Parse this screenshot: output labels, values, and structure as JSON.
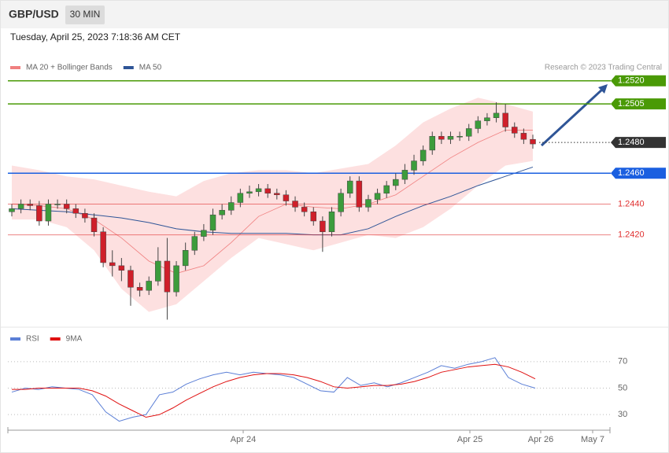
{
  "chart_data": {
    "type": "candlestick",
    "symbol": "GBP/USD",
    "timeframe": "30 MIN",
    "timestamp": "Tuesday, April 25, 2023 7:18:36 AM CET",
    "credit": "Research © 2023 Trading Central",
    "up_color": "#3c9c3c",
    "down_color": "#cf1f2a",
    "open": [
      1.2435,
      1.2437,
      1.244,
      1.2439,
      1.2429,
      1.244,
      1.244,
      1.2437,
      1.2434,
      1.2431,
      1.2422,
      1.2402,
      1.24,
      1.2397,
      1.2386,
      1.2384,
      1.239,
      1.2403,
      1.2383,
      1.24,
      1.241,
      1.2419,
      1.2423,
      1.2433,
      1.2436,
      1.2441,
      1.2447,
      1.2448,
      1.245,
      1.2447,
      1.2446,
      1.2442,
      1.2438,
      1.2435,
      1.2429,
      1.2422,
      1.2435,
      1.2447,
      1.2455,
      1.2438,
      1.2443,
      1.2447,
      1.2452,
      1.2456,
      1.2462,
      1.2468,
      1.2475,
      1.2484,
      1.2482,
      1.2484,
      1.2484,
      1.2489,
      1.2494,
      1.2496,
      1.2499,
      1.249,
      1.2486,
      1.2482
    ],
    "high": [
      1.244,
      1.2443,
      1.2443,
      1.2442,
      1.2443,
      1.2443,
      1.2443,
      1.244,
      1.2437,
      1.2434,
      1.2425,
      1.241,
      1.2405,
      1.24,
      1.2389,
      1.2393,
      1.2412,
      1.2418,
      1.2403,
      1.2415,
      1.2422,
      1.2427,
      1.2437,
      1.244,
      1.2445,
      1.245,
      1.2452,
      1.2453,
      1.2453,
      1.245,
      1.2449,
      1.2445,
      1.2441,
      1.2438,
      1.2432,
      1.2438,
      1.245,
      1.2458,
      1.2458,
      1.2446,
      1.245,
      1.2455,
      1.246,
      1.2466,
      1.2472,
      1.2478,
      1.2487,
      1.2487,
      1.2487,
      1.2487,
      1.2492,
      1.2497,
      1.2499,
      1.2506,
      1.2505,
      1.2493,
      1.2489,
      1.2485
    ],
    "low": [
      1.2432,
      1.2434,
      1.2436,
      1.2426,
      1.2426,
      1.2437,
      1.2434,
      1.2431,
      1.2428,
      1.2419,
      1.2399,
      1.2393,
      1.239,
      1.2374,
      1.238,
      1.2381,
      1.2387,
      1.2365,
      1.238,
      1.2397,
      1.2407,
      1.2416,
      1.242,
      1.243,
      1.2433,
      1.2438,
      1.2444,
      1.2445,
      1.2444,
      1.2443,
      1.2439,
      1.2435,
      1.2432,
      1.2426,
      1.2409,
      1.2419,
      1.2432,
      1.2444,
      1.2435,
      1.2435,
      1.244,
      1.2444,
      1.2449,
      1.2453,
      1.2459,
      1.2465,
      1.2472,
      1.2479,
      1.2479,
      1.2481,
      1.2481,
      1.2486,
      1.2491,
      1.2493,
      1.2487,
      1.2483,
      1.2479,
      1.2476
    ],
    "close": [
      1.2437,
      1.244,
      1.2439,
      1.2429,
      1.244,
      1.244,
      1.2437,
      1.2434,
      1.2431,
      1.2422,
      1.2402,
      1.24,
      1.2397,
      1.2386,
      1.2384,
      1.239,
      1.2403,
      1.2383,
      1.24,
      1.241,
      1.2419,
      1.2423,
      1.2433,
      1.2436,
      1.2441,
      1.2447,
      1.2448,
      1.245,
      1.2447,
      1.2446,
      1.2442,
      1.2438,
      1.2435,
      1.2429,
      1.2422,
      1.2435,
      1.2447,
      1.2455,
      1.2438,
      1.2443,
      1.2447,
      1.2452,
      1.2456,
      1.2462,
      1.2468,
      1.2475,
      1.2484,
      1.2482,
      1.2484,
      1.2484,
      1.2489,
      1.2494,
      1.2496,
      1.2499,
      1.249,
      1.2486,
      1.2482,
      1.2479
    ],
    "overlay_legend": [
      {
        "name": "MA 20 + Bollinger Bands",
        "color": "#f08080"
      },
      {
        "name": "MA 50",
        "color": "#2f5597"
      }
    ],
    "ma20": [
      1.244,
      1.2439,
      1.2437,
      1.243,
      1.2418,
      1.2403,
      1.2395,
      1.24,
      1.2415,
      1.2432,
      1.244,
      1.2438,
      1.2437,
      1.244,
      1.2446,
      1.2458,
      1.247,
      1.248,
      1.2488,
      1.2488
    ],
    "bollinger_upper": [
      1.2465,
      1.2462,
      1.2458,
      1.2456,
      1.2452,
      1.2448,
      1.2445,
      1.2455,
      1.246,
      1.2462,
      1.2462,
      1.246,
      1.2463,
      1.2466,
      1.2478,
      1.2493,
      1.2502,
      1.2509,
      1.2505,
      1.25
    ],
    "bollinger_lower": [
      1.243,
      1.243,
      1.2425,
      1.241,
      1.2385,
      1.237,
      1.2375,
      1.239,
      1.2405,
      1.2418,
      1.2414,
      1.241,
      1.2415,
      1.242,
      1.2418,
      1.2425,
      1.2437,
      1.2452,
      1.2465,
      1.2468
    ],
    "ma50": [
      1.2437,
      1.2436,
      1.2435,
      1.2433,
      1.2431,
      1.2428,
      1.2424,
      1.2422,
      1.2421,
      1.2421,
      1.2421,
      1.242,
      1.242,
      1.2424,
      1.2432,
      1.2439,
      1.2445,
      1.2452,
      1.2458,
      1.2464
    ],
    "levels": [
      {
        "value": 1.252,
        "label": "1.2520",
        "color": "#4a9a06",
        "style": "box"
      },
      {
        "value": 1.2505,
        "label": "1.2505",
        "color": "#4a9a06",
        "style": "box"
      },
      {
        "value": 1.248,
        "label": "1.2480",
        "color": "#333333",
        "style": "dotted-box"
      },
      {
        "value": 1.246,
        "label": "1.2460",
        "color": "#1a5fe0",
        "style": "box"
      },
      {
        "value": 1.244,
        "label": "1.2440",
        "color": "#e03030",
        "style": "text"
      },
      {
        "value": 1.242,
        "label": "1.2420",
        "color": "#e03030",
        "style": "text"
      }
    ],
    "ylim": [
      1.23642,
      1.25316
    ],
    "x_labels": [
      "Apr 24",
      "Apr 25",
      "Apr 26",
      "May 7"
    ],
    "rsi": {
      "series": [
        {
          "name": "RSI",
          "color": "#5b7fd6",
          "values": [
            47,
            50,
            49,
            51,
            50,
            49,
            45,
            32,
            25,
            28,
            30,
            45,
            47,
            53,
            57,
            60,
            62,
            60,
            62,
            61,
            60,
            58,
            53,
            48,
            47,
            58,
            52,
            54,
            51,
            54,
            58,
            62,
            67,
            65,
            68,
            70,
            73,
            58,
            53,
            50
          ]
        },
        {
          "name": "9MA",
          "color": "#e01010",
          "values": [
            49,
            49,
            50,
            50,
            50,
            50,
            48,
            44,
            38,
            33,
            28,
            30,
            35,
            41,
            46,
            51,
            55,
            58,
            60,
            61,
            61,
            60,
            58,
            55,
            51,
            50,
            51,
            52,
            52,
            53,
            55,
            58,
            62,
            64,
            66,
            67,
            68,
            66,
            62,
            57
          ]
        }
      ],
      "ylim": [
        20,
        80
      ],
      "yticks": [
        70,
        50,
        30
      ]
    }
  }
}
